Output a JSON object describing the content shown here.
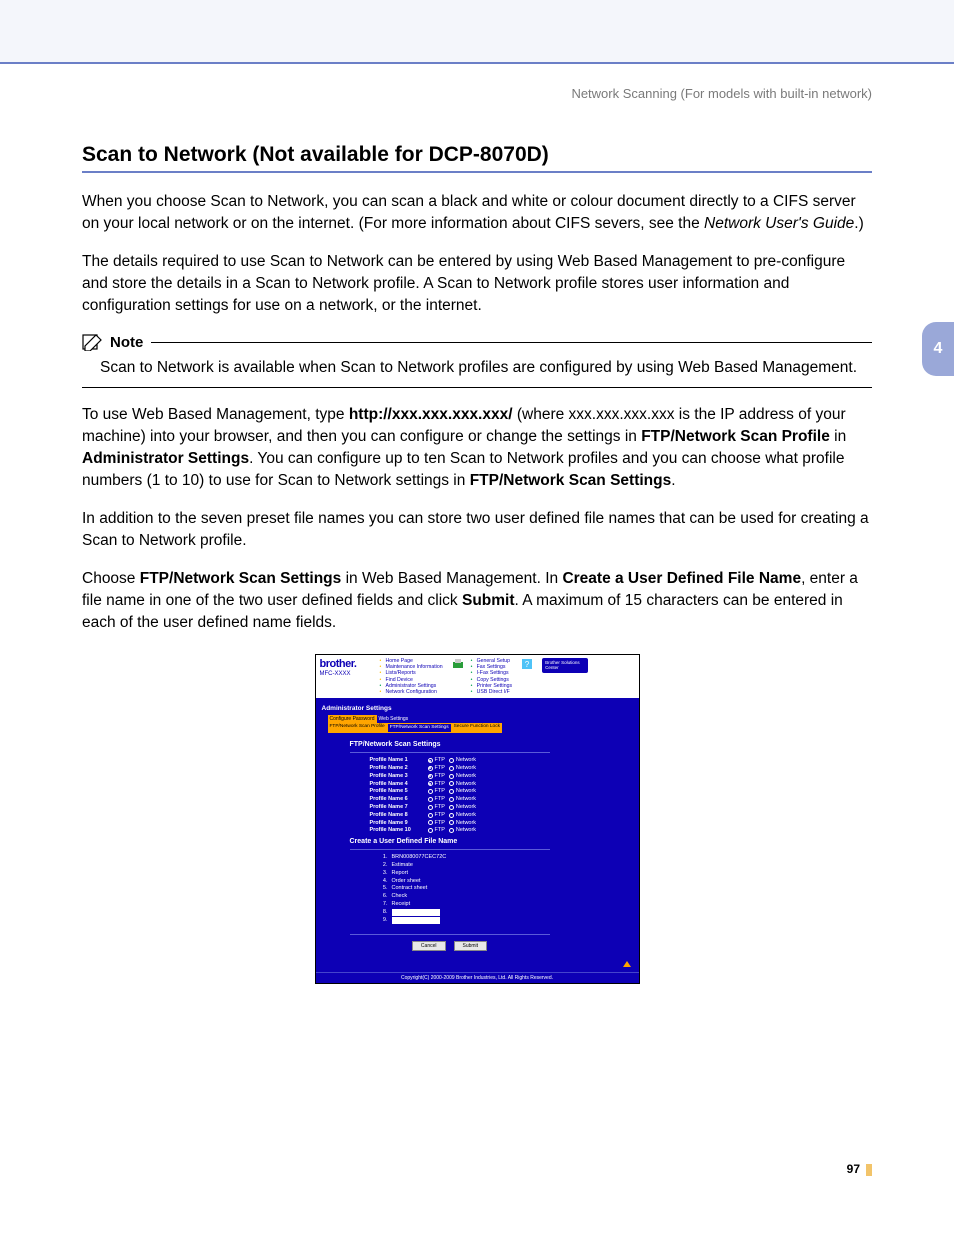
{
  "page": {
    "breadcrumb": "Network Scanning (For models with built-in network)",
    "chapter_tab": "4",
    "page_number": "97"
  },
  "section": {
    "title": "Scan to Network (Not available for DCP-8070D)",
    "para1_a": "When you choose Scan to Network, you can scan a black and white or colour document directly to a CIFS server on your local network or on the internet. (For more information about CIFS severs, see the ",
    "para1_i": "Network User's Guide",
    "para1_b": ".)",
    "para2": "The details required to use Scan to Network can be entered by using Web Based Management to pre-configure and store the details in a Scan to Network profile. A Scan to Network profile stores user information and configuration settings for use on a network, or the internet.",
    "note_label": "Note",
    "note_body": "Scan to Network is available when Scan to Network profiles are configured by using Web Based Management.",
    "para3_a": "To use Web Based Management, type ",
    "para3_b": "http://xxx.xxx.xxx.xxx/",
    "para3_c": " (where xxx.xxx.xxx.xxx is the IP address of your machine) into your browser, and then you can configure or change the settings in ",
    "para3_d": "FTP/Network Scan Profile",
    "para3_e": " in ",
    "para3_f": "Administrator Settings",
    "para3_g": ". You can configure up to ten Scan to Network profiles and you can choose what profile numbers (1 to 10) to use for Scan to Network settings in ",
    "para3_h": "FTP/Network Scan Settings",
    "para3_i": ".",
    "para4": "In addition to the seven preset file names you can store two user defined file names that can be used for creating a Scan to Network profile.",
    "para5_a": "Choose ",
    "para5_b": "FTP/Network Scan Settings",
    "para5_c": " in Web Based Management. In ",
    "para5_d": "Create a User Defined File Name",
    "para5_e": ", enter a file name in one of the two user defined fields and click ",
    "para5_f": "Submit",
    "para5_g": ". A maximum of 15 characters can be entered in each of the user defined name fields."
  },
  "wbm": {
    "brand": "brother.",
    "model": "MFC-XXXX",
    "nav_left": [
      "Home Page",
      "Maintenance Information",
      "Lists/Reports",
      "Find Device",
      "Administrator Settings",
      "Network Configuration"
    ],
    "nav_right": [
      "General Setup",
      "Fax Settings",
      "I-Fax Settings",
      "Copy Settings",
      "Printer Settings",
      "USB Direct I/F"
    ],
    "solutions_btn": "Brother Solutions Center",
    "admin_head": "Administrator Settings",
    "tabs": [
      "Configure Password",
      "Web Settings"
    ],
    "subtabs": [
      "FTP/Network Scan Profile",
      "FTP/Network Scan Settings",
      "Secure Function Lock"
    ],
    "sec_title_1": "FTP/Network Scan Settings",
    "profiles": [
      {
        "label": "Profile Name 1",
        "ftp": true,
        "net": false
      },
      {
        "label": "Profile Name 2",
        "ftp": true,
        "net": false
      },
      {
        "label": "Profile Name 3",
        "ftp": true,
        "net": false
      },
      {
        "label": "Profile Name 4",
        "ftp": true,
        "net": false
      },
      {
        "label": "Profile Name 5",
        "ftp": false,
        "net": false
      },
      {
        "label": "Profile Name 6",
        "ftp": false,
        "net": false
      },
      {
        "label": "Profile Name 7",
        "ftp": false,
        "net": false
      },
      {
        "label": "Profile Name 8",
        "ftp": false,
        "net": false
      },
      {
        "label": "Profile Name 9",
        "ftp": false,
        "net": false
      },
      {
        "label": "Profile Name 10",
        "ftp": false,
        "net": false
      }
    ],
    "ftp_label": "FTP",
    "net_label": "Network",
    "sec_title_2": "Create a User Defined File Name",
    "filenames": [
      {
        "n": "1.",
        "v": "BRN0080077CEC72C"
      },
      {
        "n": "2.",
        "v": "Estimate"
      },
      {
        "n": "3.",
        "v": "Report"
      },
      {
        "n": "4.",
        "v": "Order sheet"
      },
      {
        "n": "5.",
        "v": "Contract sheet"
      },
      {
        "n": "6.",
        "v": "Check"
      },
      {
        "n": "7.",
        "v": "Receipt"
      },
      {
        "n": "8.",
        "v": ""
      },
      {
        "n": "9.",
        "v": ""
      }
    ],
    "btn_cancel": "Cancel",
    "btn_submit": "Submit",
    "copyright": "Copyright(C) 2000-2009 Brother Industries, Ltd. All Rights Reserved."
  }
}
